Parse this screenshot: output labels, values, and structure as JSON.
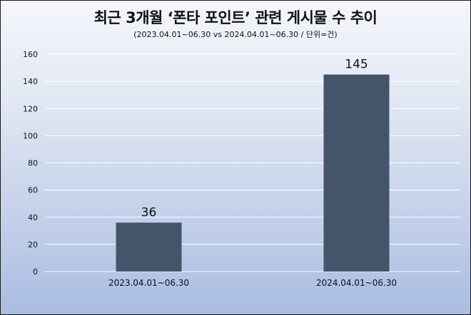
{
  "chart_data": {
    "type": "bar",
    "title": "최근 3개월 ‘폰타 포인트’ 관련 게시물 수 추이",
    "subtitle": "(2023.04.01~06.30 vs 2024.04.01~06.30 / 단위=건)",
    "categories": [
      "2023.04.01~06.30",
      "2024.04.01~06.30"
    ],
    "values": [
      36,
      145
    ],
    "data_labels": [
      "36",
      "145"
    ],
    "ylim": [
      0,
      160
    ],
    "yticks": [
      0,
      20,
      40,
      60,
      80,
      100,
      120,
      140,
      160
    ],
    "grid": true,
    "legend": "none",
    "bar_color": "#44546a",
    "grid_color": "#ffffff"
  }
}
